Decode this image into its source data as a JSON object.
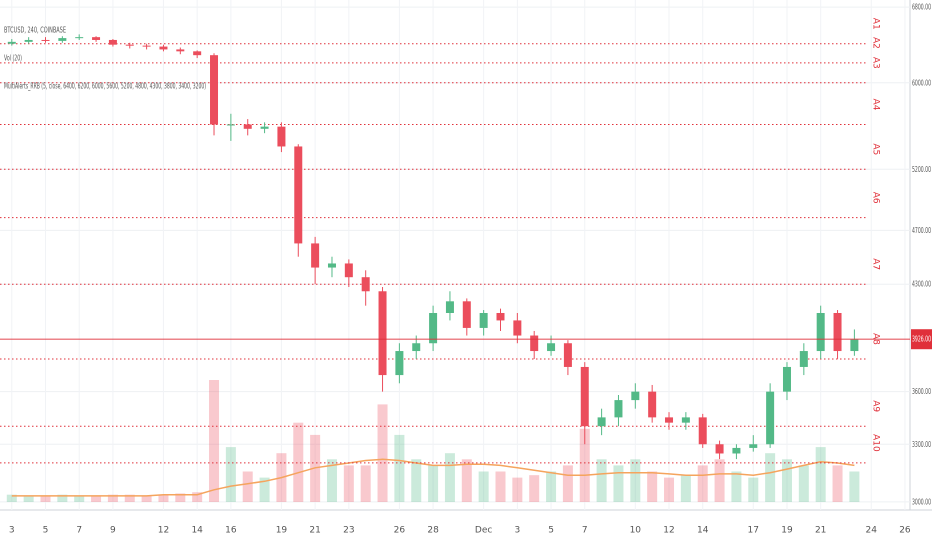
{
  "chart_data": {
    "type": "candlestick",
    "title": "BTCUSD, 240, COINBASE",
    "volume_label": "Vol (20)",
    "indicator_label": "MultiAlerts_RRB (5, close, 6400, 6200, 6000, 5600, 5200, 4800, 4300, 3800, 3400, 3200)",
    "log_scale": true,
    "grid": true,
    "up_color": "#53b987",
    "down_color": "#eb4d5c",
    "alert_color": "#e0303a",
    "volume_ma_color": "#f5a45d",
    "x": [
      0,
      1,
      2,
      3,
      4,
      5,
      6,
      7,
      8,
      9,
      10,
      11,
      12,
      13,
      14,
      15,
      16,
      17,
      18,
      19,
      20,
      21,
      22,
      23,
      24,
      25,
      26,
      27,
      28,
      29,
      30,
      31,
      32,
      33,
      34,
      35,
      36,
      37,
      38,
      39,
      40,
      41,
      42,
      43,
      44,
      45,
      46,
      47,
      48,
      49,
      50
    ],
    "open": [
      6400,
      6420,
      6440,
      6430,
      6460,
      6470,
      6440,
      6390,
      6380,
      6370,
      6340,
      6320,
      6280,
      5600,
      5600,
      5560,
      5580,
      5400,
      4600,
      4420,
      4450,
      4350,
      4250,
      3700,
      3850,
      3900,
      4100,
      4180,
      4000,
      4100,
      4050,
      3950,
      3850,
      3900,
      3750,
      3400,
      3450,
      3550,
      3600,
      3450,
      3420,
      3450,
      3300,
      3250,
      3280,
      3300,
      3600,
      3750,
      3850,
      4100,
      3850
    ],
    "high": [
      6450,
      6470,
      6470,
      6480,
      6500,
      6480,
      6450,
      6410,
      6400,
      6390,
      6360,
      6330,
      6300,
      5700,
      5650,
      5620,
      5620,
      5420,
      4650,
      4500,
      4480,
      4400,
      4280,
      3900,
      3950,
      4150,
      4250,
      4200,
      4120,
      4130,
      4100,
      3980,
      3950,
      3920,
      3780,
      3500,
      3580,
      3650,
      3640,
      3480,
      3480,
      3470,
      3320,
      3300,
      3350,
      3650,
      3780,
      3900,
      4150,
      4120,
      3990
    ],
    "low": [
      6380,
      6400,
      6410,
      6410,
      6440,
      6420,
      6370,
      6350,
      6340,
      6320,
      6290,
      6250,
      5500,
      5450,
      5500,
      5520,
      5350,
      4500,
      4300,
      4350,
      4280,
      4150,
      3600,
      3650,
      3800,
      3850,
      4050,
      3950,
      3950,
      3980,
      3900,
      3800,
      3820,
      3700,
      3300,
      3350,
      3400,
      3500,
      3420,
      3380,
      3380,
      3280,
      3220,
      3220,
      3260,
      3280,
      3550,
      3700,
      3800,
      3800,
      3820
    ],
    "close": [
      6420,
      6440,
      6430,
      6460,
      6470,
      6440,
      6390,
      6380,
      6370,
      6340,
      6320,
      6280,
      5600,
      5600,
      5560,
      5580,
      5400,
      4600,
      4420,
      4450,
      4350,
      4250,
      3700,
      3850,
      3900,
      4100,
      4180,
      4000,
      4100,
      4050,
      3950,
      3850,
      3900,
      3750,
      3400,
      3450,
      3550,
      3600,
      3450,
      3420,
      3450,
      3300,
      3250,
      3280,
      3300,
      3600,
      3750,
      3850,
      4100,
      3850,
      3926
    ],
    "volume": [
      6,
      5,
      5,
      6,
      5,
      5,
      6,
      6,
      5,
      6,
      7,
      8,
      100,
      45,
      25,
      20,
      40,
      65,
      55,
      35,
      30,
      30,
      80,
      55,
      35,
      30,
      40,
      35,
      25,
      25,
      20,
      22,
      25,
      30,
      60,
      35,
      30,
      35,
      25,
      20,
      22,
      30,
      35,
      25,
      20,
      40,
      35,
      30,
      45,
      30,
      25
    ],
    "volume_ma": [
      5,
      5,
      5,
      5,
      5,
      5,
      5,
      5,
      5,
      6,
      6,
      6,
      10,
      13,
      15,
      17,
      20,
      24,
      28,
      30,
      32,
      34,
      35,
      34,
      32,
      30,
      30,
      31,
      31,
      30,
      28,
      26,
      24,
      22,
      22,
      23,
      24,
      24,
      24,
      23,
      22,
      22,
      23,
      23,
      22,
      24,
      27,
      30,
      33,
      32,
      30
    ],
    "vlim": [
      0,
      100
    ],
    "xlim": [
      -0.7,
      53.3
    ],
    "xticks": [
      {
        "value": 0,
        "label": "3"
      },
      {
        "value": 2,
        "label": "5"
      },
      {
        "value": 4,
        "label": "7"
      },
      {
        "value": 6,
        "label": "9"
      },
      {
        "value": 9,
        "label": "12"
      },
      {
        "value": 11,
        "label": "14"
      },
      {
        "value": 13,
        "label": "16"
      },
      {
        "value": 16,
        "label": "19"
      },
      {
        "value": 18,
        "label": "21"
      },
      {
        "value": 20,
        "label": "23"
      },
      {
        "value": 23,
        "label": "26"
      },
      {
        "value": 25,
        "label": "28"
      },
      {
        "value": 28,
        "label": "Dec"
      },
      {
        "value": 30,
        "label": "3"
      },
      {
        "value": 32,
        "label": "5"
      },
      {
        "value": 34,
        "label": "7"
      },
      {
        "value": 37,
        "label": "10"
      },
      {
        "value": 39,
        "label": "12"
      },
      {
        "value": 41,
        "label": "14"
      },
      {
        "value": 44,
        "label": "17"
      },
      {
        "value": 46,
        "label": "19"
      },
      {
        "value": 48,
        "label": "21"
      },
      {
        "value": 51,
        "label": "24"
      },
      {
        "value": 53,
        "label": "26"
      }
    ],
    "ylim": [
      2960,
      6880
    ],
    "yticks": [
      {
        "value": 3000,
        "label": "3000.00"
      },
      {
        "value": 3300,
        "label": "3300.00"
      },
      {
        "value": 3600,
        "label": "3600.00"
      },
      {
        "value": 4300,
        "label": "4300.00"
      },
      {
        "value": 4700,
        "label": "4700.00"
      },
      {
        "value": 5200,
        "label": "5200.00"
      },
      {
        "value": 6000,
        "label": "6000.00"
      },
      {
        "value": 6800,
        "label": "6800.00"
      }
    ],
    "last_price": {
      "value": 3926,
      "label": "3926.00"
    },
    "alerts": [
      {
        "label": "A1",
        "value": 6400
      },
      {
        "label": "A2",
        "value": 6200
      },
      {
        "label": "A3",
        "value": 6000
      },
      {
        "label": "A4",
        "value": 5600
      },
      {
        "label": "A5",
        "value": 5200
      },
      {
        "label": "A6",
        "value": 4800
      },
      {
        "label": "A7",
        "value": 4300
      },
      {
        "label": "A8",
        "value": 3800
      },
      {
        "label": "A9",
        "value": 3400
      },
      {
        "label": "A10",
        "value": 3200
      }
    ]
  }
}
